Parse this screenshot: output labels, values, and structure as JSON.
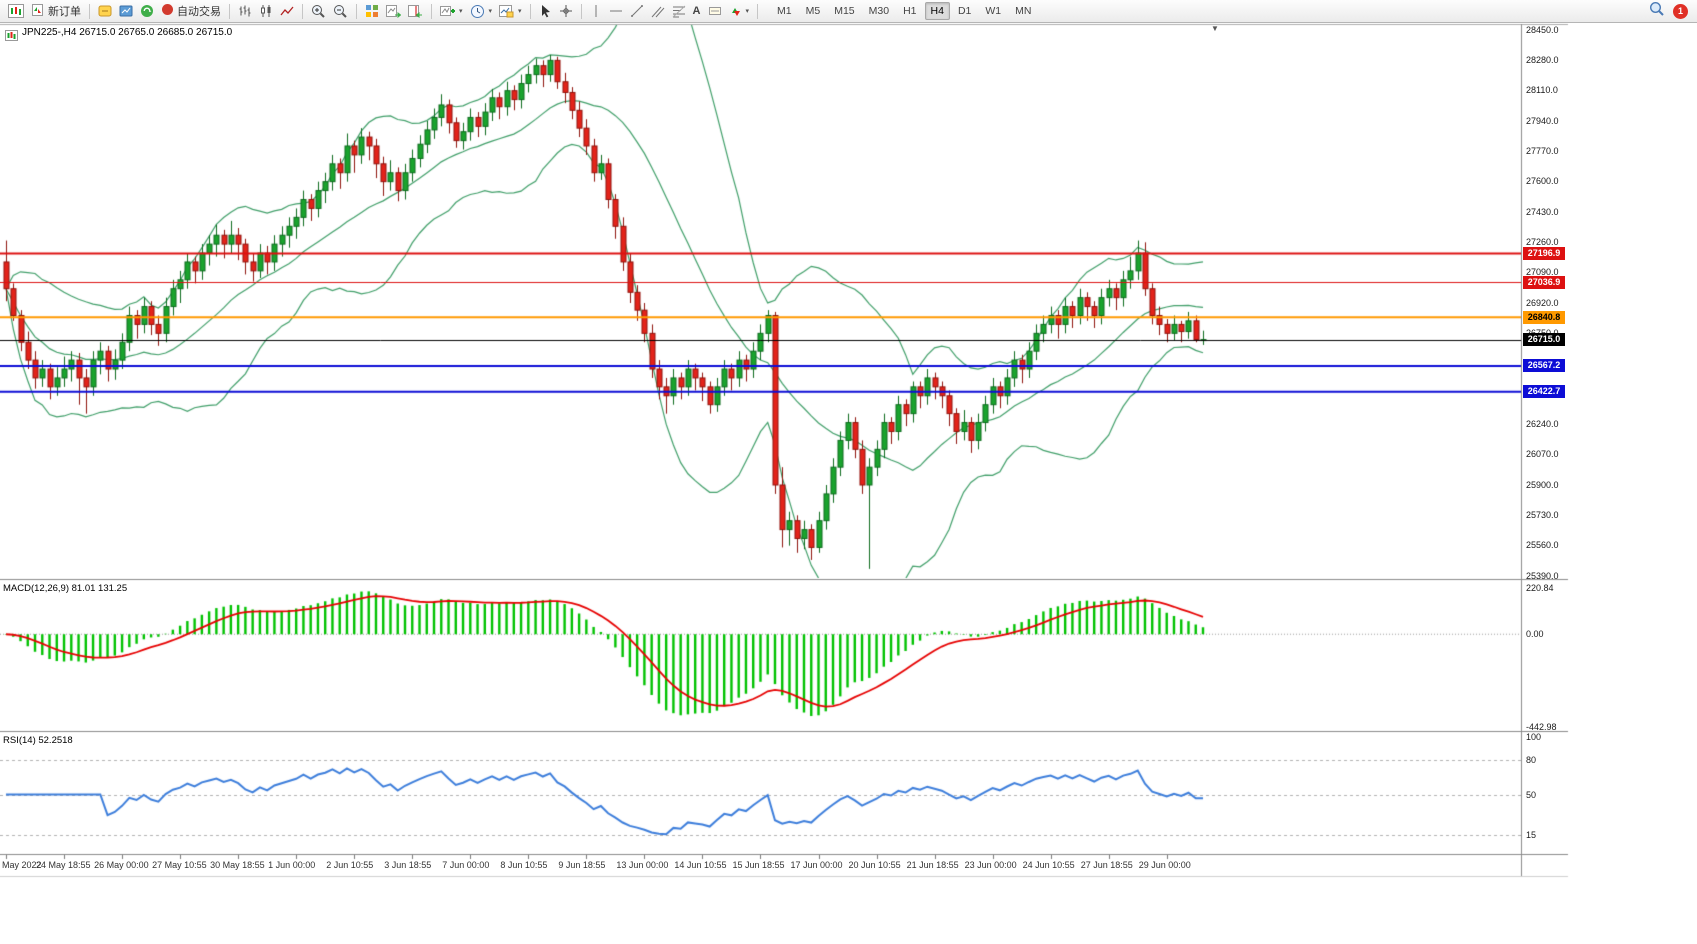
{
  "toolbar": {
    "new_order_label": "新订单",
    "autotrading_label": "自动交易",
    "timeframes": [
      "M1",
      "M5",
      "M15",
      "M30",
      "H1",
      "H4",
      "D1",
      "W1",
      "MN"
    ],
    "active_timeframe": "H4",
    "notification_badge": "1",
    "glyphs": {
      "caret": "▾",
      "shift_marker": "▼",
      "text_tool": "A"
    }
  },
  "chart_data": {
    "type": "candlestick",
    "title": "JPN225-,H4  26715.0 26765.0 26685.0 26715.0",
    "symbol": "JPN225-",
    "period": "H4",
    "last_ohlc": {
      "open": 26715.0,
      "high": 26765.0,
      "low": 26685.0,
      "close": 26715.0
    },
    "colors": {
      "up": "#1aa32e",
      "down": "#e3231a",
      "up_edge": "#0c6b1d",
      "down_edge": "#8f130c",
      "bollinger": "#3f9e68",
      "macd_hist": "#00c200",
      "macd_signal": "#e60000",
      "rsi_line": "#3d7edb",
      "grid_frame": "#888888"
    },
    "shift_marker": "▼",
    "price_axis": {
      "max": 28450,
      "min": 25390,
      "labels": [
        "28450.0",
        "28280.0",
        "28110.0",
        "27940.0",
        "27770.0",
        "27600.0",
        "27430.0",
        "27260.0",
        "27090.0",
        "26920.0",
        "26750.0",
        "26240.0",
        "26070.0",
        "25900.0",
        "25730.0",
        "25560.0",
        "25390.0"
      ]
    },
    "hlines": [
      {
        "price": 27196.9,
        "label": "27196.9",
        "color": "#dd1111",
        "fg": "#ffffff",
        "width": 2
      },
      {
        "price": 27036.9,
        "label": "27036.9",
        "color": "#dd1111",
        "fg": "#ffffff",
        "width": 1
      },
      {
        "price": 26840.8,
        "label": "26840.8",
        "color": "#ff9900",
        "fg": "#000000",
        "width": 2
      },
      {
        "price": 26715.0,
        "label": "26715.0",
        "color": "#000000",
        "fg": "#ffffff",
        "width": 1
      },
      {
        "price": 26567.2,
        "label": "26567.2",
        "color": "#0d0dd6",
        "fg": "#ffffff",
        "width": 2
      },
      {
        "price": 26422.7,
        "label": "26422.7",
        "color": "#0d0dd6",
        "fg": "#ffffff",
        "width": 2
      }
    ],
    "time_labels": [
      "May 2022",
      "24 May 18:55",
      "26 May 00:00",
      "27 May 10:55",
      "30 May 18:55",
      "1 Jun 00:00",
      "2 Jun 10:55",
      "3 Jun 18:55",
      "7 Jun 00:00",
      "8 Jun 10:55",
      "9 Jun 18:55",
      "13 Jun 00:00",
      "14 Jun 10:55",
      "15 Jun 18:55",
      "17 Jun 00:00",
      "20 Jun 10:55",
      "21 Jun 18:55",
      "23 Jun 00:00",
      "24 Jun 10:55",
      "27 Jun 18:55",
      "29 Jun 00:00"
    ],
    "candles_per_time_label": 8,
    "indicators": {
      "bollinger": {
        "period": 20,
        "deviation": 2
      },
      "macd": {
        "label": "MACD(12,26,9) 81.01 131.25",
        "axis_labels": [
          "220.84",
          "0.00",
          "-442.98"
        ],
        "axis_max": 220.84,
        "axis_min": -442.98
      },
      "rsi": {
        "label": "RSI(14) 52.2518",
        "axis_labels": [
          "100",
          "80",
          "50",
          "15"
        ],
        "levels": [
          80,
          50,
          15
        ],
        "axis_max": 100,
        "axis_min": 0
      }
    },
    "candles": [
      [
        27150,
        27270,
        26930,
        27000
      ],
      [
        27000,
        27030,
        26820,
        26850
      ],
      [
        26850,
        26880,
        26650,
        26700
      ],
      [
        26700,
        26760,
        26550,
        26600
      ],
      [
        26600,
        26650,
        26440,
        26500
      ],
      [
        26500,
        26600,
        26450,
        26550
      ],
      [
        26550,
        26580,
        26380,
        26450
      ],
      [
        26450,
        26560,
        26400,
        26500
      ],
      [
        26500,
        26620,
        26450,
        26550
      ],
      [
        26550,
        26650,
        26480,
        26600
      ],
      [
        26600,
        26640,
        26350,
        26500
      ],
      [
        26500,
        26550,
        26300,
        26450
      ],
      [
        26450,
        26650,
        26400,
        26600
      ],
      [
        26600,
        26700,
        26520,
        26650
      ],
      [
        26650,
        26680,
        26480,
        26550
      ],
      [
        26550,
        26660,
        26490,
        26600
      ],
      [
        26600,
        26750,
        26550,
        26700
      ],
      [
        26700,
        26900,
        26650,
        26850
      ],
      [
        26850,
        26880,
        26720,
        26800
      ],
      [
        26800,
        26950,
        26750,
        26900
      ],
      [
        26900,
        26930,
        26740,
        26800
      ],
      [
        26800,
        26850,
        26680,
        26750
      ],
      [
        26750,
        26950,
        26700,
        26900
      ],
      [
        26900,
        27050,
        26850,
        27000
      ],
      [
        27000,
        27100,
        26920,
        27050
      ],
      [
        27050,
        27200,
        27000,
        27150
      ],
      [
        27150,
        27180,
        27030,
        27100
      ],
      [
        27100,
        27250,
        27050,
        27200
      ],
      [
        27200,
        27300,
        27130,
        27250
      ],
      [
        27250,
        27360,
        27180,
        27300
      ],
      [
        27300,
        27330,
        27170,
        27250
      ],
      [
        27250,
        27380,
        27200,
        27300
      ],
      [
        27300,
        27340,
        27160,
        27250
      ],
      [
        27250,
        27280,
        27080,
        27150
      ],
      [
        27150,
        27200,
        27040,
        27100
      ],
      [
        27100,
        27250,
        27060,
        27200
      ],
      [
        27200,
        27240,
        27080,
        27150
      ],
      [
        27150,
        27300,
        27100,
        27250
      ],
      [
        27250,
        27350,
        27180,
        27300
      ],
      [
        27300,
        27400,
        27230,
        27350
      ],
      [
        27350,
        27450,
        27280,
        27400
      ],
      [
        27400,
        27550,
        27350,
        27500
      ],
      [
        27500,
        27530,
        27380,
        27450
      ],
      [
        27450,
        27600,
        27400,
        27550
      ],
      [
        27550,
        27650,
        27480,
        27600
      ],
      [
        27600,
        27750,
        27550,
        27700
      ],
      [
        27700,
        27730,
        27560,
        27650
      ],
      [
        27650,
        27870,
        27600,
        27800
      ],
      [
        27800,
        27830,
        27650,
        27750
      ],
      [
        27750,
        27900,
        27700,
        27850
      ],
      [
        27850,
        27880,
        27720,
        27800
      ],
      [
        27800,
        27840,
        27620,
        27700
      ],
      [
        27700,
        27740,
        27520,
        27600
      ],
      [
        27600,
        27720,
        27550,
        27650
      ],
      [
        27650,
        27680,
        27490,
        27550
      ],
      [
        27550,
        27700,
        27500,
        27650
      ],
      [
        27650,
        27780,
        27600,
        27730
      ],
      [
        27730,
        27860,
        27680,
        27810
      ],
      [
        27810,
        27940,
        27760,
        27890
      ],
      [
        27890,
        28010,
        27840,
        27960
      ],
      [
        27960,
        28090,
        27910,
        28030
      ],
      [
        28030,
        28060,
        27870,
        27930
      ],
      [
        27930,
        27960,
        27790,
        27830
      ],
      [
        27830,
        27930,
        27780,
        27880
      ],
      [
        27880,
        28010,
        27830,
        27960
      ],
      [
        27960,
        27990,
        27850,
        27910
      ],
      [
        27910,
        28040,
        27860,
        27990
      ],
      [
        27990,
        28120,
        27940,
        28070
      ],
      [
        28070,
        28100,
        27950,
        28020
      ],
      [
        28020,
        28160,
        27970,
        28110
      ],
      [
        28110,
        28140,
        28000,
        28060
      ],
      [
        28060,
        28200,
        28010,
        28150
      ],
      [
        28150,
        28250,
        28100,
        28200
      ],
      [
        28200,
        28290,
        28150,
        28250
      ],
      [
        28250,
        28280,
        28130,
        28200
      ],
      [
        28200,
        28310,
        28160,
        28280
      ],
      [
        28280,
        28300,
        28120,
        28160
      ],
      [
        28160,
        28210,
        28040,
        28100
      ],
      [
        28100,
        28130,
        27950,
        28000
      ],
      [
        28000,
        28050,
        27850,
        27900
      ],
      [
        27900,
        27950,
        27750,
        27800
      ],
      [
        27800,
        27840,
        27600,
        27650
      ],
      [
        27650,
        27750,
        27610,
        27700
      ],
      [
        27700,
        27730,
        27450,
        27500
      ],
      [
        27500,
        27530,
        27280,
        27350
      ],
      [
        27350,
        27400,
        27100,
        27150
      ],
      [
        27150,
        27200,
        26920,
        26980
      ],
      [
        26980,
        27020,
        26820,
        26880
      ],
      [
        26880,
        26920,
        26700,
        26750
      ],
      [
        26750,
        26800,
        26500,
        26550
      ],
      [
        26550,
        26600,
        26380,
        26450
      ],
      [
        26450,
        26500,
        26300,
        26400
      ],
      [
        26400,
        26550,
        26350,
        26500
      ],
      [
        26500,
        26530,
        26380,
        26450
      ],
      [
        26450,
        26600,
        26400,
        26550
      ],
      [
        26550,
        26580,
        26430,
        26500
      ],
      [
        26500,
        26530,
        26370,
        26450
      ],
      [
        26450,
        26480,
        26300,
        26350
      ],
      [
        26350,
        26500,
        26310,
        26450
      ],
      [
        26450,
        26600,
        26400,
        26550
      ],
      [
        26550,
        26580,
        26430,
        26500
      ],
      [
        26500,
        26650,
        26450,
        26600
      ],
      [
        26600,
        26630,
        26480,
        26550
      ],
      [
        26550,
        26700,
        26500,
        26650
      ],
      [
        26650,
        26800,
        26600,
        26750
      ],
      [
        26750,
        26880,
        26700,
        26850
      ],
      [
        26850,
        26870,
        25850,
        25900
      ],
      [
        25900,
        26000,
        25550,
        25650
      ],
      [
        25650,
        25750,
        25560,
        25700
      ],
      [
        25700,
        25730,
        25520,
        25600
      ],
      [
        25600,
        25700,
        25540,
        25650
      ],
      [
        25650,
        25680,
        25480,
        25550
      ],
      [
        25550,
        25750,
        25520,
        25700
      ],
      [
        25700,
        25900,
        25650,
        25850
      ],
      [
        25850,
        26050,
        25800,
        26000
      ],
      [
        26000,
        26200,
        25950,
        26150
      ],
      [
        26150,
        26300,
        26100,
        26250
      ],
      [
        26250,
        26280,
        26050,
        26100
      ],
      [
        26100,
        26150,
        25850,
        25900
      ],
      [
        25900,
        26050,
        25430,
        26000
      ],
      [
        26000,
        26150,
        25950,
        26100
      ],
      [
        26100,
        26300,
        26050,
        26250
      ],
      [
        26250,
        26280,
        26130,
        26200
      ],
      [
        26200,
        26400,
        26150,
        26350
      ],
      [
        26350,
        26380,
        26230,
        26300
      ],
      [
        26300,
        26480,
        26250,
        26450
      ],
      [
        26450,
        26480,
        26330,
        26400
      ],
      [
        26400,
        26550,
        26350,
        26500
      ],
      [
        26500,
        26530,
        26380,
        26450
      ],
      [
        26450,
        26480,
        26330,
        26400
      ],
      [
        26400,
        26430,
        26230,
        26300
      ],
      [
        26300,
        26330,
        26130,
        26200
      ],
      [
        26200,
        26320,
        26150,
        26250
      ],
      [
        26250,
        26280,
        26080,
        26150
      ],
      [
        26150,
        26300,
        26100,
        26250
      ],
      [
        26250,
        26400,
        26200,
        26350
      ],
      [
        26350,
        26500,
        26300,
        26450
      ],
      [
        26450,
        26480,
        26330,
        26400
      ],
      [
        26400,
        26550,
        26350,
        26500
      ],
      [
        26500,
        26650,
        26450,
        26600
      ],
      [
        26600,
        26630,
        26470,
        26550
      ],
      [
        26550,
        26700,
        26500,
        26650
      ],
      [
        26650,
        26800,
        26600,
        26750
      ],
      [
        26750,
        26850,
        26700,
        26800
      ],
      [
        26800,
        26900,
        26750,
        26850
      ],
      [
        26850,
        26880,
        26720,
        26800
      ],
      [
        26800,
        26950,
        26750,
        26900
      ],
      [
        26900,
        26930,
        26780,
        26850
      ],
      [
        26850,
        27000,
        26800,
        26950
      ],
      [
        26950,
        26980,
        26820,
        26900
      ],
      [
        26900,
        26930,
        26780,
        26850
      ],
      [
        26850,
        27000,
        26800,
        26950
      ],
      [
        26950,
        27050,
        26900,
        27000
      ],
      [
        27000,
        27030,
        26880,
        26950
      ],
      [
        26950,
        27100,
        26900,
        27050
      ],
      [
        27050,
        27180,
        27000,
        27100
      ],
      [
        27100,
        27270,
        27050,
        27200
      ],
      [
        27200,
        27260,
        26960,
        27000
      ],
      [
        27000,
        27030,
        26800,
        26850
      ],
      [
        26850,
        26900,
        26740,
        26800
      ],
      [
        26800,
        26830,
        26700,
        26750
      ],
      [
        26750,
        26850,
        26710,
        26800
      ],
      [
        26800,
        26820,
        26700,
        26760
      ],
      [
        26760,
        26870,
        26720,
        26820
      ],
      [
        26820,
        26850,
        26700,
        26715
      ],
      [
        26715,
        26765,
        26685,
        26715
      ]
    ]
  }
}
